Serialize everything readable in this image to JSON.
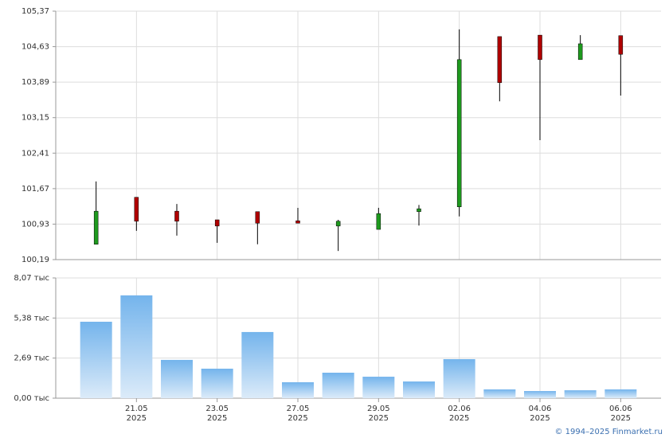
{
  "chart_data": [
    {
      "type": "candlestick",
      "categories": [
        null,
        "21.05",
        null,
        "23.05",
        null,
        "27.05",
        null,
        "29.05",
        null,
        "02.06",
        null,
        "04.06",
        null,
        "06.06"
      ],
      "year_labels": [
        null,
        "2025",
        null,
        "2025",
        null,
        "2025",
        null,
        "2025",
        null,
        "2025",
        null,
        "2025",
        null,
        "2025"
      ],
      "open": [
        100.51,
        101.49,
        101.2,
        101.02,
        101.19,
        101.0,
        100.89,
        100.82,
        101.19,
        101.29,
        104.84,
        104.87,
        104.36,
        104.86
      ],
      "high": [
        101.82,
        101.49,
        101.35,
        101.02,
        101.19,
        101.27,
        101.02,
        101.27,
        101.33,
        104.99,
        104.84,
        104.87,
        104.87,
        104.86
      ],
      "low": [
        100.51,
        100.79,
        100.69,
        100.54,
        100.51,
        100.95,
        100.37,
        100.82,
        100.9,
        101.09,
        103.49,
        102.68,
        104.36,
        103.61
      ],
      "close": [
        101.2,
        100.99,
        100.99,
        100.89,
        100.95,
        100.95,
        100.99,
        101.15,
        101.25,
        104.36,
        103.88,
        104.36,
        104.69,
        104.47
      ],
      "up_color": "#1e9a1e",
      "down_color": "#b00000",
      "ylim": [
        100.19,
        105.37
      ],
      "yticks": [
        {
          "value": 100.19,
          "label": "100,19"
        },
        {
          "value": 100.93,
          "label": "100,93"
        },
        {
          "value": 101.67,
          "label": "101,67"
        },
        {
          "value": 102.41,
          "label": "102,41"
        },
        {
          "value": 103.15,
          "label": "103,15"
        },
        {
          "value": 103.89,
          "label": "103,89"
        },
        {
          "value": 104.63,
          "label": "104,63"
        },
        {
          "value": 105.37,
          "label": "105,37"
        }
      ],
      "grid": true
    },
    {
      "type": "bar",
      "values": [
        5.13,
        6.9,
        2.57,
        1.98,
        4.44,
        1.07,
        1.71,
        1.44,
        1.12,
        2.62,
        0.59,
        0.48,
        0.53,
        0.59
      ],
      "color": "#7ab8ee",
      "ylim": [
        0,
        8.07
      ],
      "yticks": [
        {
          "value": 0,
          "label": "0,00 тыс"
        },
        {
          "value": 2.69,
          "label": "2,69 тыс"
        },
        {
          "value": 5.38,
          "label": "5,38 тыс"
        },
        {
          "value": 8.07,
          "label": "8,07 тыс"
        }
      ],
      "grid": true
    }
  ],
  "footer": "© 1994–2025 Finmarket.ru"
}
